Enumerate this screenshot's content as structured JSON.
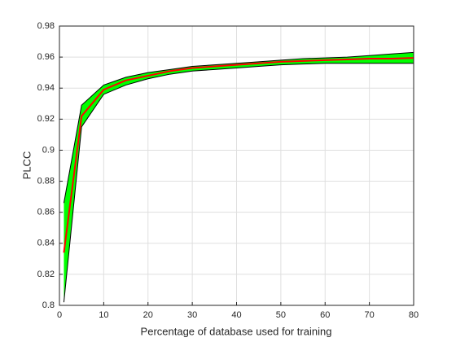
{
  "chart_data": {
    "type": "line",
    "xlabel": "Percentage of database used for training",
    "ylabel": "PLCC",
    "x": [
      1,
      5,
      10,
      15,
      20,
      25,
      30,
      35,
      40,
      45,
      50,
      55,
      60,
      65,
      70,
      75,
      80
    ],
    "band": {
      "color": "#00ff00",
      "edge_color": "#000000",
      "upper": [
        0.866,
        0.929,
        0.942,
        0.947,
        0.95,
        0.952,
        0.954,
        0.955,
        0.956,
        0.957,
        0.958,
        0.959,
        0.9595,
        0.96,
        0.961,
        0.962,
        0.963
      ],
      "lower": [
        0.802,
        0.915,
        0.936,
        0.942,
        0.946,
        0.949,
        0.951,
        0.952,
        0.953,
        0.954,
        0.955,
        0.9555,
        0.956,
        0.956,
        0.956,
        0.956,
        0.956
      ]
    },
    "series": [
      {
        "color": "#ff0000",
        "values": [
          0.834,
          0.922,
          0.939,
          0.945,
          0.948,
          0.951,
          0.953,
          0.954,
          0.955,
          0.956,
          0.957,
          0.9575,
          0.958,
          0.9585,
          0.959,
          0.959,
          0.9595
        ]
      }
    ],
    "xlim": [
      0,
      80
    ],
    "xticks": [
      0,
      10,
      20,
      30,
      40,
      50,
      60,
      70,
      80
    ],
    "ylim": [
      0.8,
      0.98
    ],
    "yticks": [
      0.8,
      0.82,
      0.84,
      0.86,
      0.88,
      0.9,
      0.92,
      0.94,
      0.96,
      0.98
    ],
    "grid": true
  }
}
